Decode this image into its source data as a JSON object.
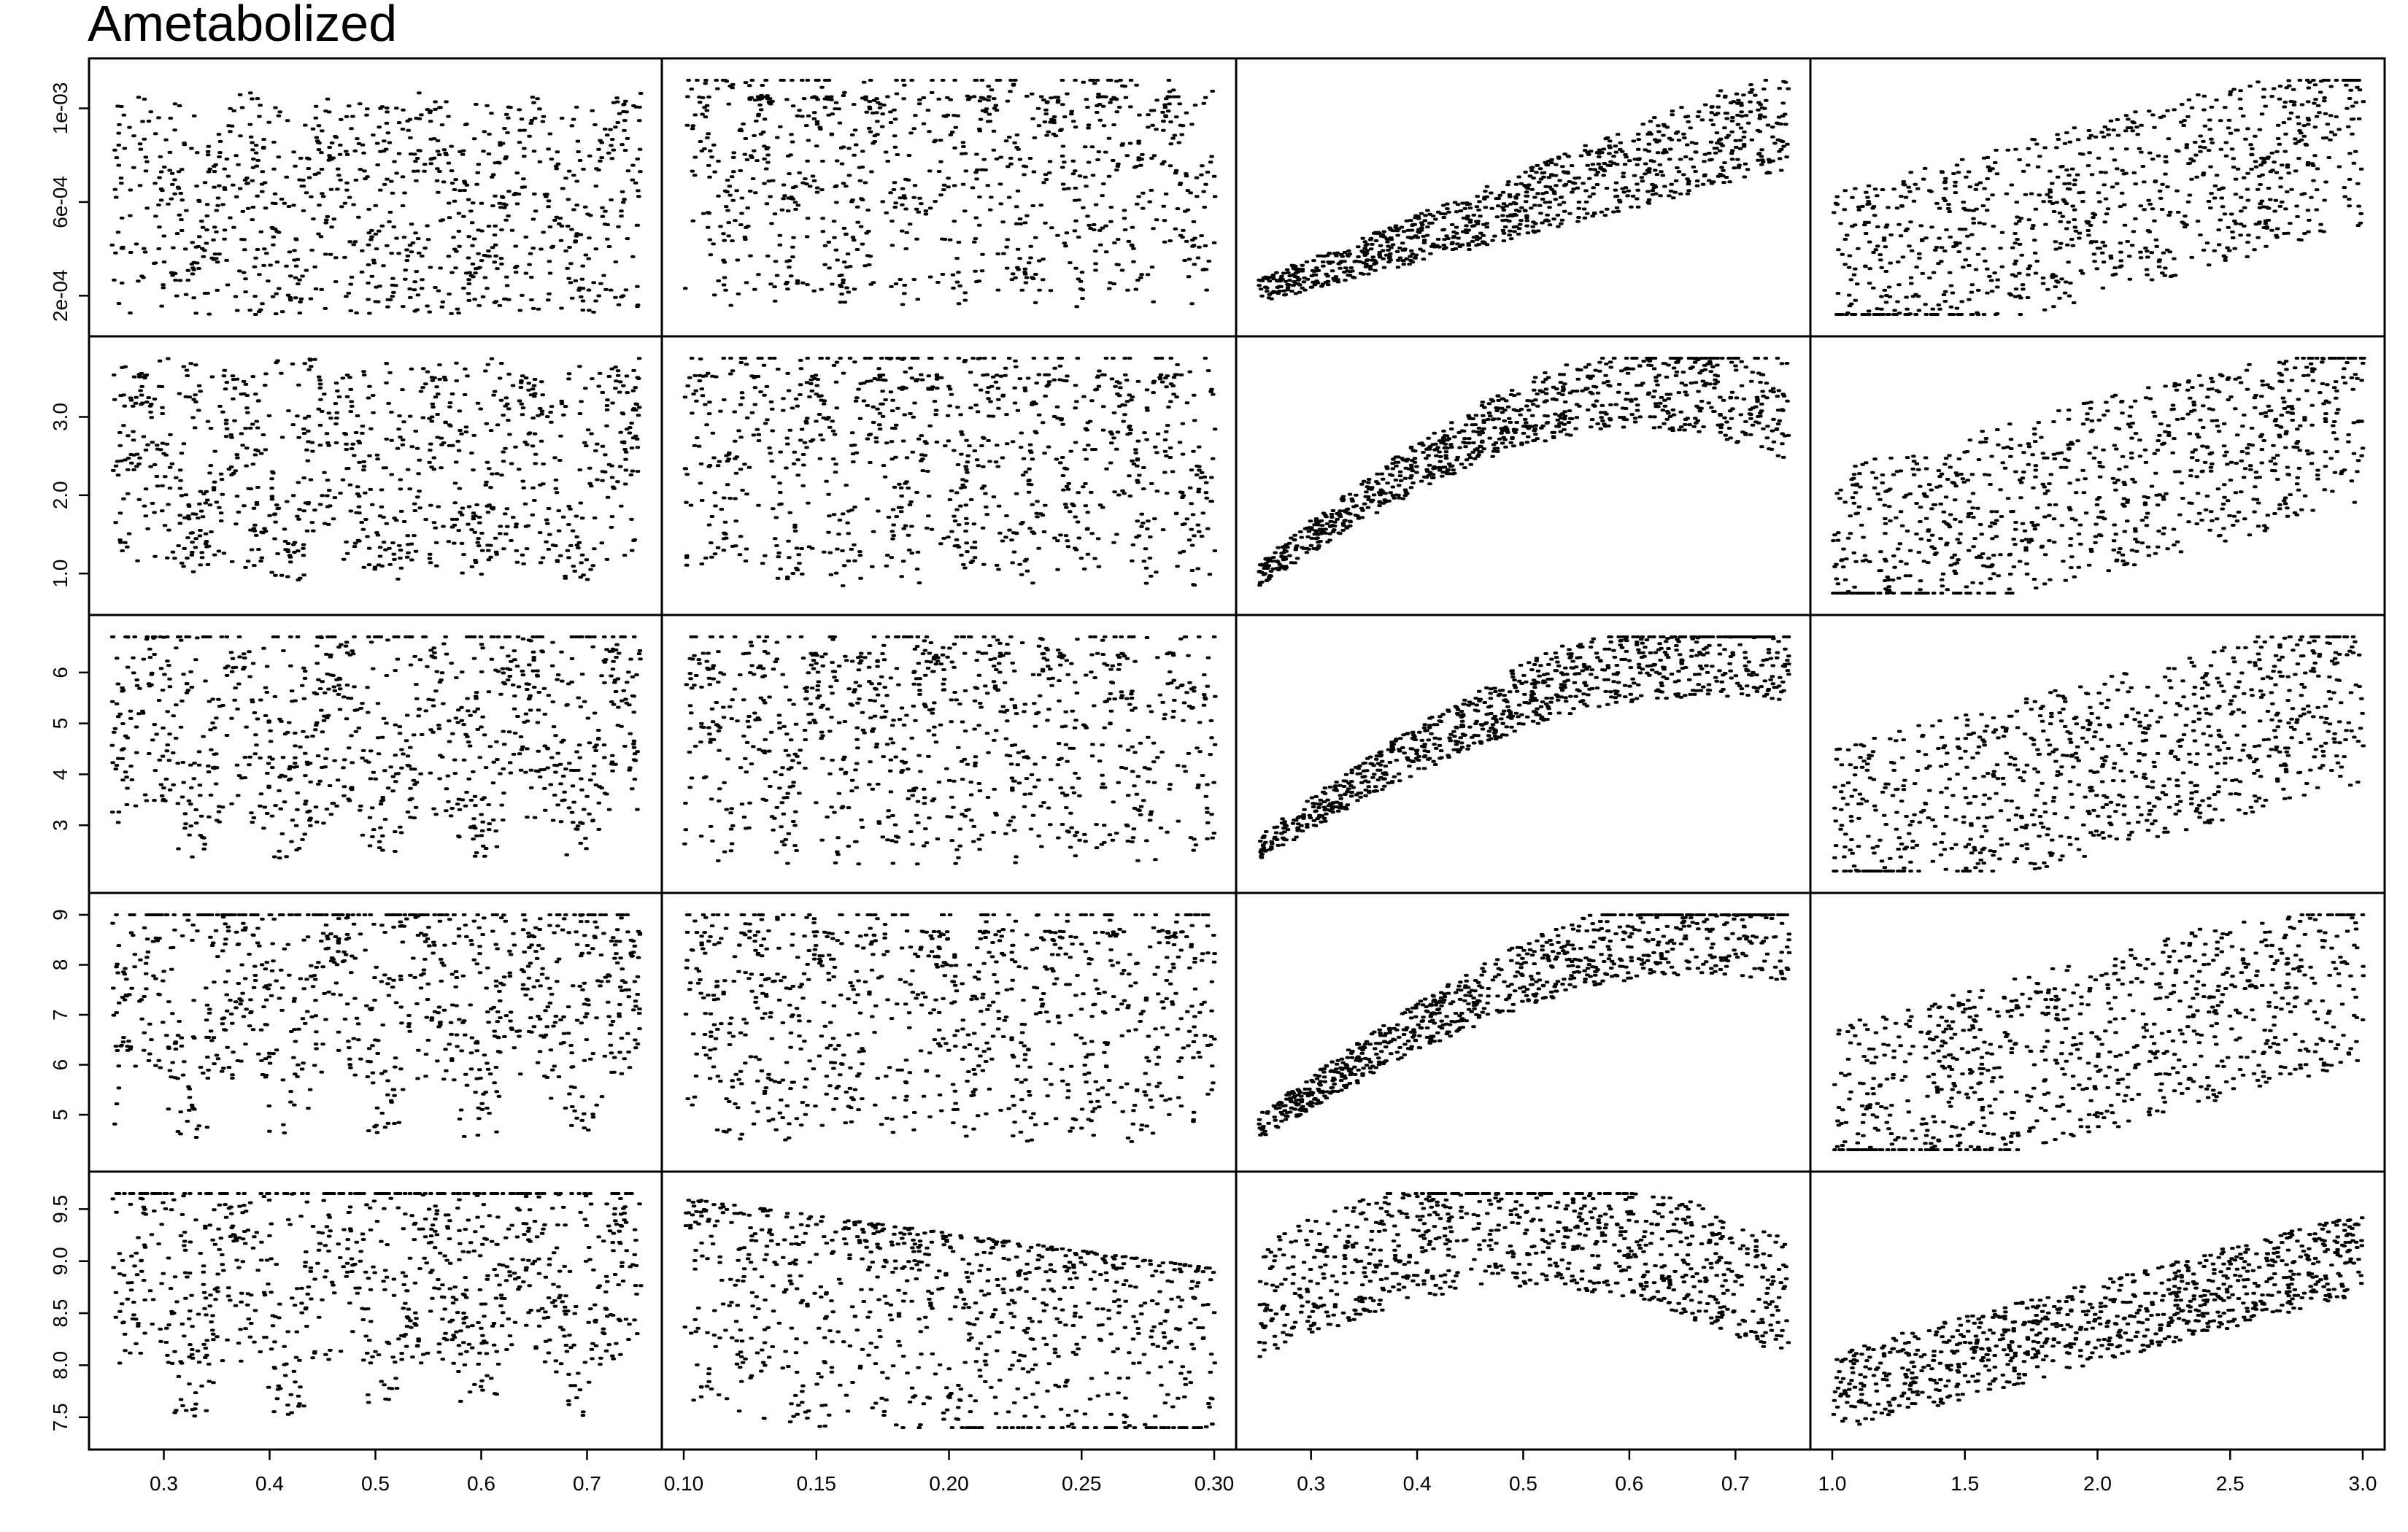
{
  "title": "Ametabolized",
  "chart_data": {
    "type": "scatter",
    "title": "Ametabolized",
    "layout": "5 rows x 4 columns scatterplot matrix (shared axes per row and column)",
    "grid": false,
    "legend": "none",
    "columns": [
      {
        "xlim": [
          0.25,
          0.75
        ],
        "ticks": [
          0.3,
          0.4,
          0.5,
          0.6,
          0.7
        ],
        "tick_labels": [
          "0.3",
          "0.4",
          "0.5",
          "0.6",
          "0.7"
        ]
      },
      {
        "xlim": [
          0.1,
          0.3
        ],
        "ticks": [
          0.1,
          0.15,
          0.2,
          0.25,
          0.3
        ],
        "tick_labels": [
          "0.10",
          "0.15",
          "0.20",
          "0.25",
          "0.30"
        ]
      },
      {
        "xlim": [
          0.25,
          0.75
        ],
        "ticks": [
          0.3,
          0.4,
          0.5,
          0.6,
          0.7
        ],
        "tick_labels": [
          "0.3",
          "0.4",
          "0.5",
          "0.6",
          "0.7"
        ]
      },
      {
        "xlim": [
          1.0,
          3.0
        ],
        "ticks": [
          1.0,
          1.5,
          2.0,
          2.5,
          3.0
        ],
        "tick_labels": [
          "1.0",
          "1.5",
          "2.0",
          "2.5",
          "3.0"
        ]
      }
    ],
    "rows": [
      {
        "ylim": [
          0.00012,
          0.00112
        ],
        "ticks": [
          0.0002,
          0.0006,
          0.001
        ],
        "tick_labels": [
          "2e-04",
          "6e-04",
          "1e-03"
        ]
      },
      {
        "ylim": [
          0.75,
          3.75
        ],
        "ticks": [
          1.0,
          2.0,
          3.0
        ],
        "tick_labels": [
          "1.0",
          "2.0",
          "3.0"
        ]
      },
      {
        "ylim": [
          2.1,
          6.7
        ],
        "ticks": [
          3,
          4,
          5,
          6
        ],
        "tick_labels": [
          "3",
          "4",
          "5",
          "6"
        ]
      },
      {
        "ylim": [
          4.3,
          9.0
        ],
        "ticks": [
          5,
          6,
          7,
          8,
          9
        ],
        "tick_labels": [
          "5",
          "6",
          "7",
          "8",
          "9"
        ]
      },
      {
        "ylim": [
          7.4,
          9.65
        ],
        "ticks": [
          7.5,
          8.0,
          8.5,
          9.0,
          9.5
        ],
        "tick_labels": [
          "7.5",
          "8.0",
          "8.5",
          "9.0",
          "9.5"
        ]
      }
    ],
    "points_per_panel_approx": 2500,
    "note_data": "Dense point clouds; column 3 shows increasing-then-leveling trend, column 4 increasing trend, columns 1-2 oscillating bands."
  }
}
